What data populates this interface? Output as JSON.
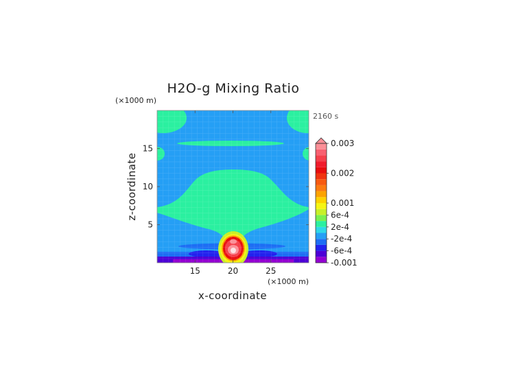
{
  "chart_data": {
    "type": "heatmap",
    "title": "H2O-g Mixing Ratio",
    "time_label": "2160 s",
    "xlabel": "x-coordinate",
    "ylabel": "z-coordinate",
    "x_unit": "(×1000 m)",
    "y_unit": "(×1000 m)",
    "xlim": [
      10,
      30
    ],
    "ylim": [
      0,
      20
    ],
    "x_ticks": [
      15,
      20,
      25
    ],
    "y_ticks": [
      5,
      10,
      15
    ],
    "grid": true,
    "colorbar": {
      "position": "right",
      "levels": [
        -0.001,
        -0.0008,
        -0.0006,
        -0.0004,
        -0.0002,
        0,
        0.0002,
        0.0004,
        0.0006,
        0.0008,
        0.001,
        0.0012,
        0.0014,
        0.0016,
        0.0018,
        0.002,
        0.0022,
        0.0024,
        0.0026,
        0.0028,
        0.003
      ],
      "colors": [
        "#9300d2",
        "#4d00d6",
        "#2222ee",
        "#1d6ef4",
        "#259ff5",
        "#2fd8e8",
        "#2bf0a0",
        "#7af050",
        "#c8f028",
        "#f5f514",
        "#fdd200",
        "#fca300",
        "#fb7a10",
        "#f75a10",
        "#f03410",
        "#e80e0e",
        "#f01c2c",
        "#f5404c",
        "#f86070",
        "#fb8f97"
      ],
      "tick_labels": [
        {
          "value": 0.003,
          "label": "0.003"
        },
        {
          "value": 0.002,
          "label": "0.002"
        },
        {
          "value": 0.001,
          "label": "0.001"
        },
        {
          "value": 0.0006,
          "label": "6e-4"
        },
        {
          "value": 0.0002,
          "label": "2e-4"
        },
        {
          "value": -0.0002,
          "label": "-2e-4"
        },
        {
          "value": -0.0006,
          "label": "-6e-4"
        },
        {
          "value": -0.001,
          "label": "-0.001"
        }
      ],
      "extend": "max"
    }
  }
}
